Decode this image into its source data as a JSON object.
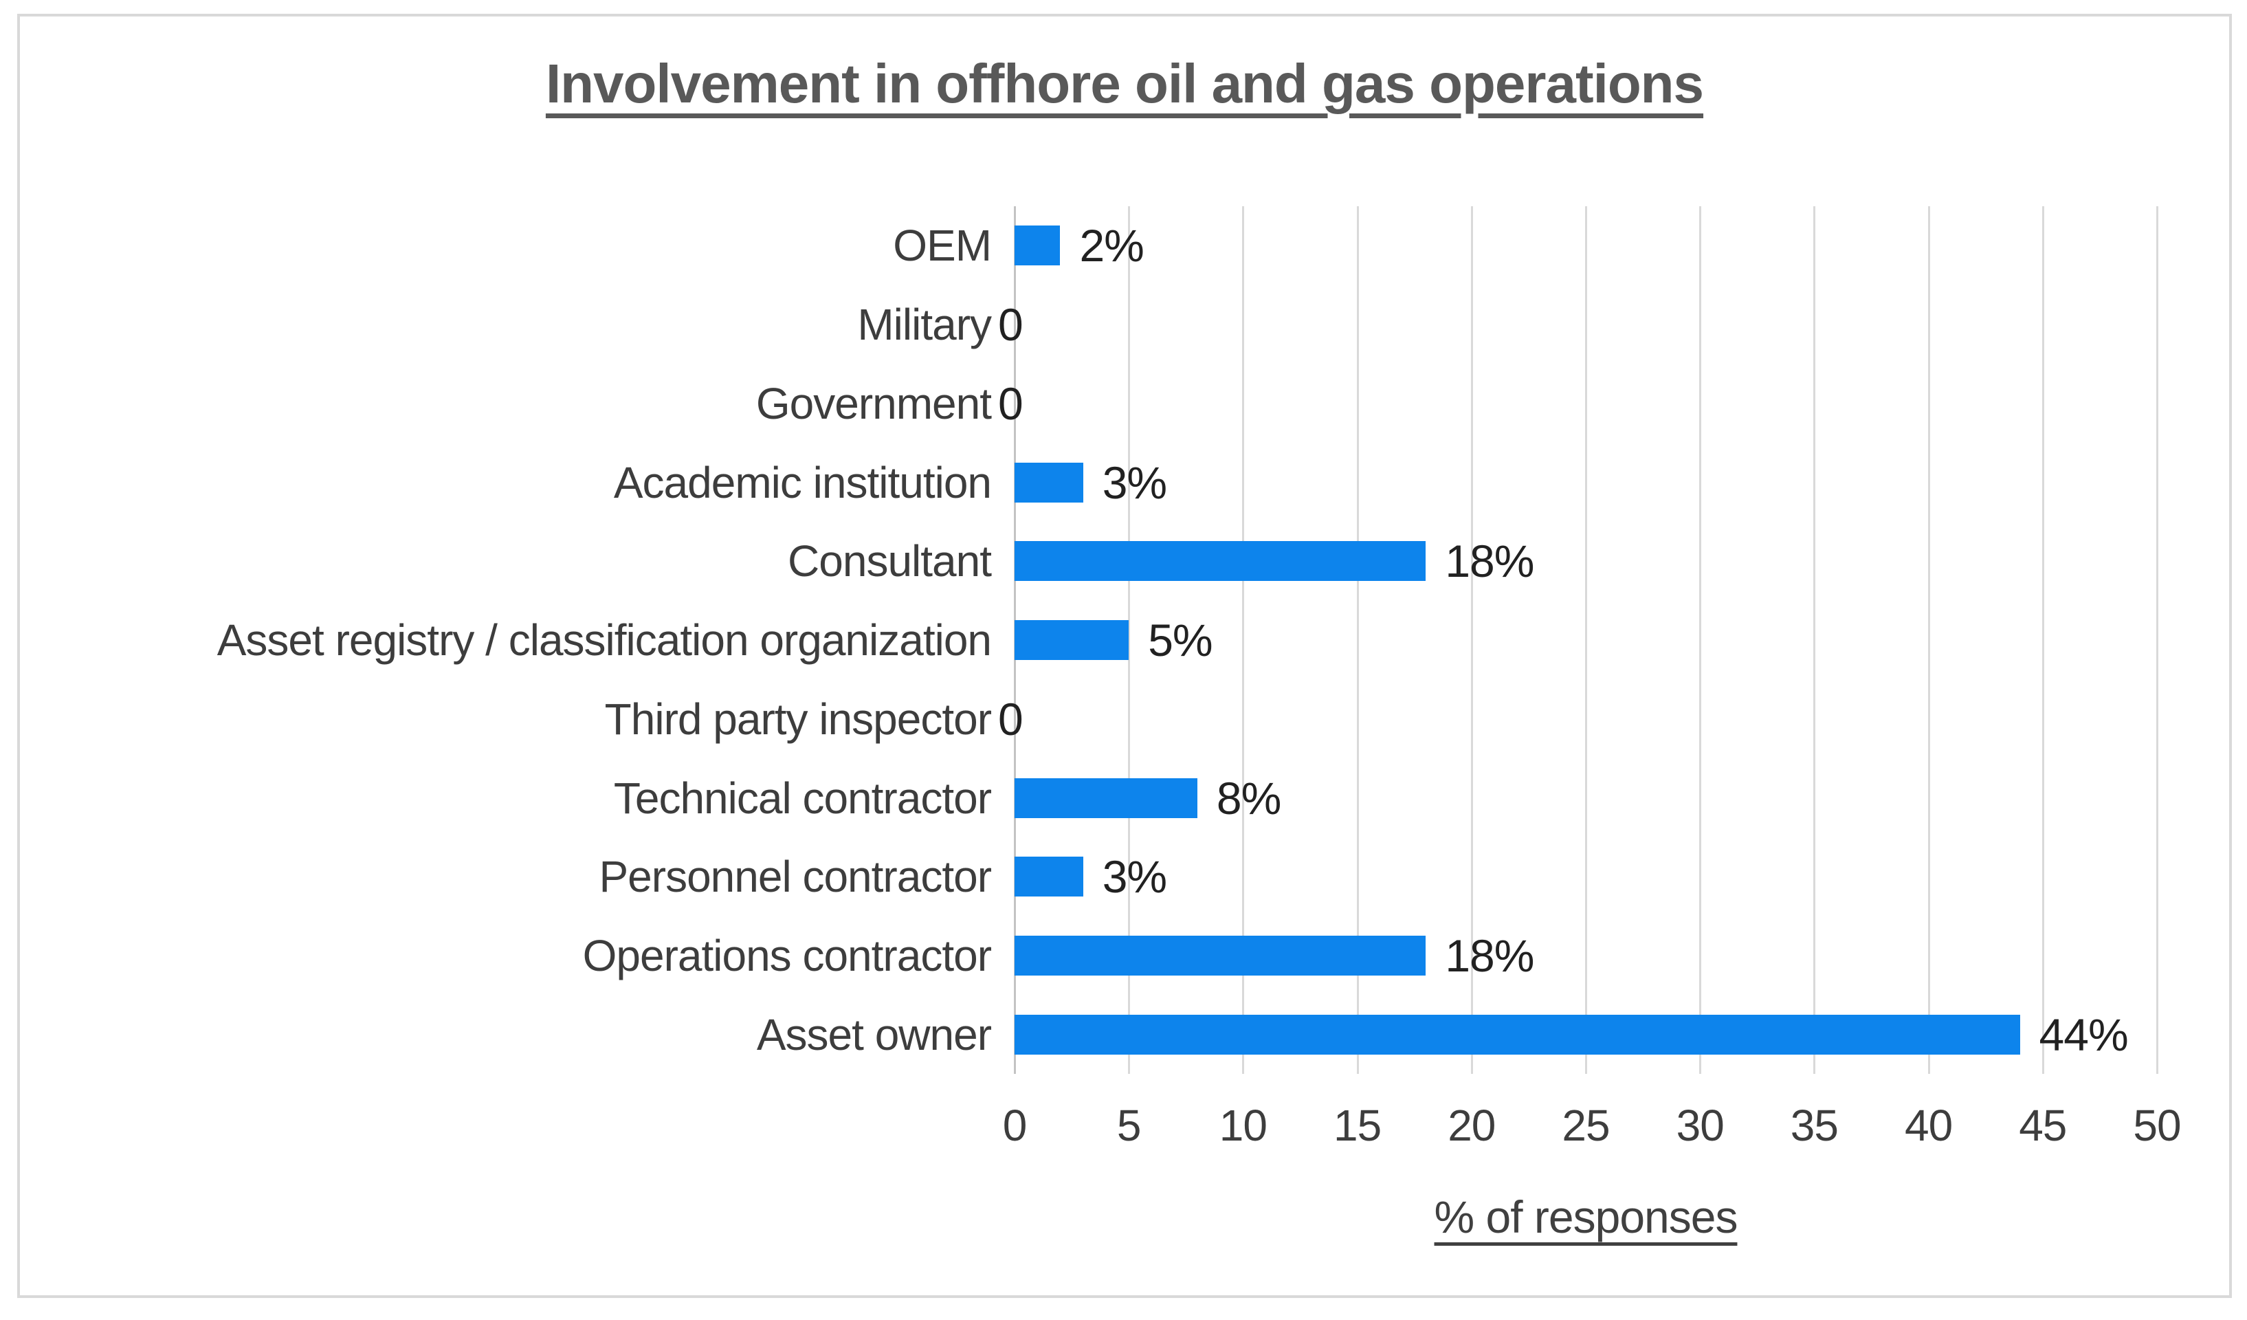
{
  "chart_data": {
    "type": "bar",
    "orientation": "horizontal",
    "title": "Involvement in offhore oil and gas operations",
    "xlabel": "% of responses",
    "categories": [
      "OEM",
      "Military",
      "Government",
      "Academic institution",
      "Consultant",
      "Asset registry / classification organization",
      "Third party inspector",
      "Technical contractor",
      "Personnel contractor",
      "Operations contractor",
      "Asset owner"
    ],
    "values": [
      2,
      0,
      0,
      3,
      18,
      5,
      0,
      8,
      3,
      18,
      44
    ],
    "data_labels": [
      "2%",
      "0",
      "0",
      "3%",
      "18%",
      "5%",
      "0",
      "8%",
      "3%",
      "18%",
      "44%"
    ],
    "xlim": [
      0,
      50
    ],
    "xticks": [
      0,
      5,
      10,
      15,
      20,
      25,
      30,
      35,
      40,
      45,
      50
    ],
    "grid": true,
    "legend": "none",
    "colors": {
      "bar": "#0d84ec",
      "gridline": "#d9d9d9",
      "axis_line": "#c3c3c3",
      "frame_border": "#d9d9d9",
      "title_text": "#595959",
      "category_text": "#3d3d3d",
      "value_text": "#212121",
      "tick_text": "#3d3d3d",
      "axis_title_text": "#404040",
      "background": "#ffffff"
    }
  }
}
